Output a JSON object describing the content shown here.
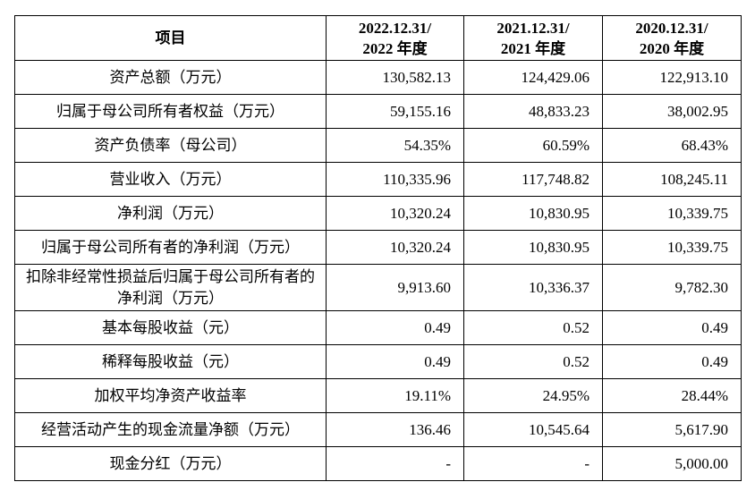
{
  "headers": [
    "项目",
    "2022.12.31/\n2022 年度",
    "2021.12.31/\n2021 年度",
    "2020.12.31/\n2020 年度"
  ],
  "header_lines": [
    [
      "项目"
    ],
    [
      "2022.12.31/",
      "2022 年度"
    ],
    [
      "2021.12.31/",
      "2021 年度"
    ],
    [
      "2020.12.31/",
      "2020 年度"
    ]
  ],
  "rows": [
    {
      "label": "资产总额（万元）",
      "values": [
        "130,582.13",
        "124,429.06",
        "122,913.10"
      ]
    },
    {
      "label": "归属于母公司所有者权益（万元）",
      "values": [
        "59,155.16",
        "48,833.23",
        "38,002.95"
      ]
    },
    {
      "label": "资产负债率（母公司）",
      "values": [
        "54.35%",
        "60.59%",
        "68.43%"
      ]
    },
    {
      "label": "营业收入（万元）",
      "values": [
        "110,335.96",
        "117,748.82",
        "108,245.11"
      ]
    },
    {
      "label": "净利润（万元）",
      "values": [
        "10,320.24",
        "10,830.95",
        "10,339.75"
      ]
    },
    {
      "label": "归属于母公司所有者的净利润（万元）",
      "values": [
        "10,320.24",
        "10,830.95",
        "10,339.75"
      ]
    },
    {
      "label": "扣除非经常性损益后归属于母公司所有者的净利润（万元）",
      "values": [
        "9,913.60",
        "10,336.37",
        "9,782.30"
      ]
    },
    {
      "label": "基本每股收益（元）",
      "values": [
        "0.49",
        "0.52",
        "0.49"
      ]
    },
    {
      "label": "稀释每股收益（元）",
      "values": [
        "0.49",
        "0.52",
        "0.49"
      ]
    },
    {
      "label": "加权平均净资产收益率",
      "values": [
        "19.11%",
        "24.95%",
        "28.44%"
      ]
    },
    {
      "label": "经营活动产生的现金流量净额（万元）",
      "values": [
        "136.46",
        "10,545.64",
        "5,617.90"
      ]
    },
    {
      "label": "现金分红（万元）",
      "values": [
        "-",
        "-",
        "5,000.00"
      ]
    }
  ]
}
